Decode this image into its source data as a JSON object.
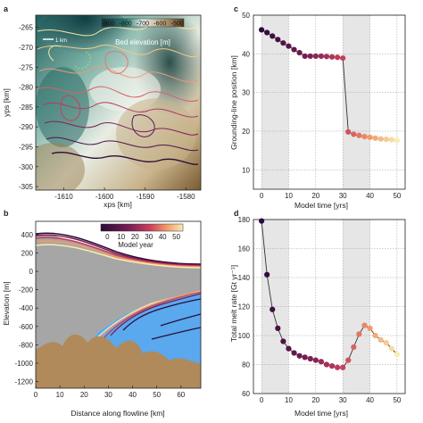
{
  "panels": {
    "a": {
      "letter": "a",
      "xlabel": "xps [km]",
      "ylabel": "yps [km]",
      "xticks": [
        "-1610",
        "-1600",
        "-1590",
        "-1580"
      ],
      "yticks": [
        "-265",
        "-270",
        "-275",
        "-280",
        "-285",
        "-290",
        "-295",
        "-300",
        "-305"
      ],
      "colorbar_ticks": [
        "-900",
        "-800",
        "-700",
        "-600",
        "-500"
      ],
      "colorbar_label": "Bed elevation [m]",
      "scalebar_label": "1 km"
    },
    "b": {
      "letter": "b",
      "xlabel": "Distance along flowline [km]",
      "ylabel": "Elevation [m]",
      "xticks": [
        "0",
        "10",
        "20",
        "30",
        "40",
        "50",
        "60"
      ],
      "yticks": [
        "400",
        "200",
        "0",
        "-200",
        "-400",
        "-600",
        "-800",
        "-1000",
        "-1200"
      ],
      "colorbar_ticks": [
        "0",
        "10",
        "20",
        "30",
        "40",
        "50"
      ],
      "colorbar_label": "Model year"
    },
    "c": {
      "letter": "c",
      "xlabel": "Model time [yrs]",
      "ylabel": "Grounding-line position [km]",
      "xticks": [
        "0",
        "10",
        "20",
        "30",
        "40",
        "50"
      ],
      "yticks": [
        "50",
        "40",
        "30",
        "20",
        "10"
      ]
    },
    "d": {
      "letter": "d",
      "xlabel": "Model time [yrs]",
      "ylabel": "Total melt rate [Gt yr⁻¹]",
      "xticks": [
        "0",
        "10",
        "20",
        "30",
        "40",
        "50"
      ],
      "yticks": [
        "180",
        "160",
        "140",
        "120",
        "100",
        "80",
        "60"
      ]
    }
  },
  "colors": {
    "early": "#2a0a3a",
    "mid": "#b02b52",
    "late": "#f6e6a0",
    "shade": "#e6e6e6",
    "ice": "#9a9a9a",
    "bed": "#b08a5a",
    "ocean": "#5aa8ee"
  },
  "chart_data": [
    {
      "panel": "c",
      "type": "scatter",
      "xlabel": "Model time [yrs]",
      "ylabel": "Grounding-line position [km]",
      "xlim": [
        -3,
        53
      ],
      "ylim": [
        5,
        50
      ],
      "shaded_x": [
        [
          0,
          10
        ],
        [
          30,
          40
        ]
      ],
      "grid": true,
      "x": [
        0,
        2,
        4,
        6,
        8,
        10,
        12,
        14,
        16,
        18,
        20,
        22,
        24,
        26,
        28,
        30,
        32,
        34,
        36,
        38,
        40,
        42,
        44,
        46,
        48,
        50
      ],
      "y": [
        46.2,
        45.5,
        44.6,
        43.7,
        42.8,
        42.0,
        41.1,
        40.3,
        39.4,
        39.4,
        39.4,
        39.4,
        39.3,
        39.2,
        39.1,
        38.9,
        19.8,
        19.2,
        18.9,
        18.6,
        18.4,
        18.2,
        18.0,
        17.9,
        17.8,
        17.6
      ]
    },
    {
      "panel": "d",
      "type": "scatter",
      "xlabel": "Model time [yrs]",
      "ylabel": "Total melt rate [Gt yr⁻¹]",
      "xlim": [
        -3,
        53
      ],
      "ylim": [
        60,
        180
      ],
      "shaded_x": [
        [
          0,
          10
        ],
        [
          30,
          40
        ]
      ],
      "grid": true,
      "x": [
        0,
        2,
        4,
        6,
        8,
        10,
        12,
        14,
        16,
        18,
        20,
        22,
        24,
        26,
        28,
        30,
        32,
        34,
        36,
        38,
        40,
        42,
        44,
        46,
        48,
        50
      ],
      "y": [
        179,
        142,
        118,
        105,
        96,
        91,
        88,
        86,
        85,
        84,
        83,
        82,
        80,
        79,
        78,
        78,
        83,
        92,
        101,
        107,
        105,
        100,
        97,
        95,
        91,
        87
      ]
    }
  ]
}
